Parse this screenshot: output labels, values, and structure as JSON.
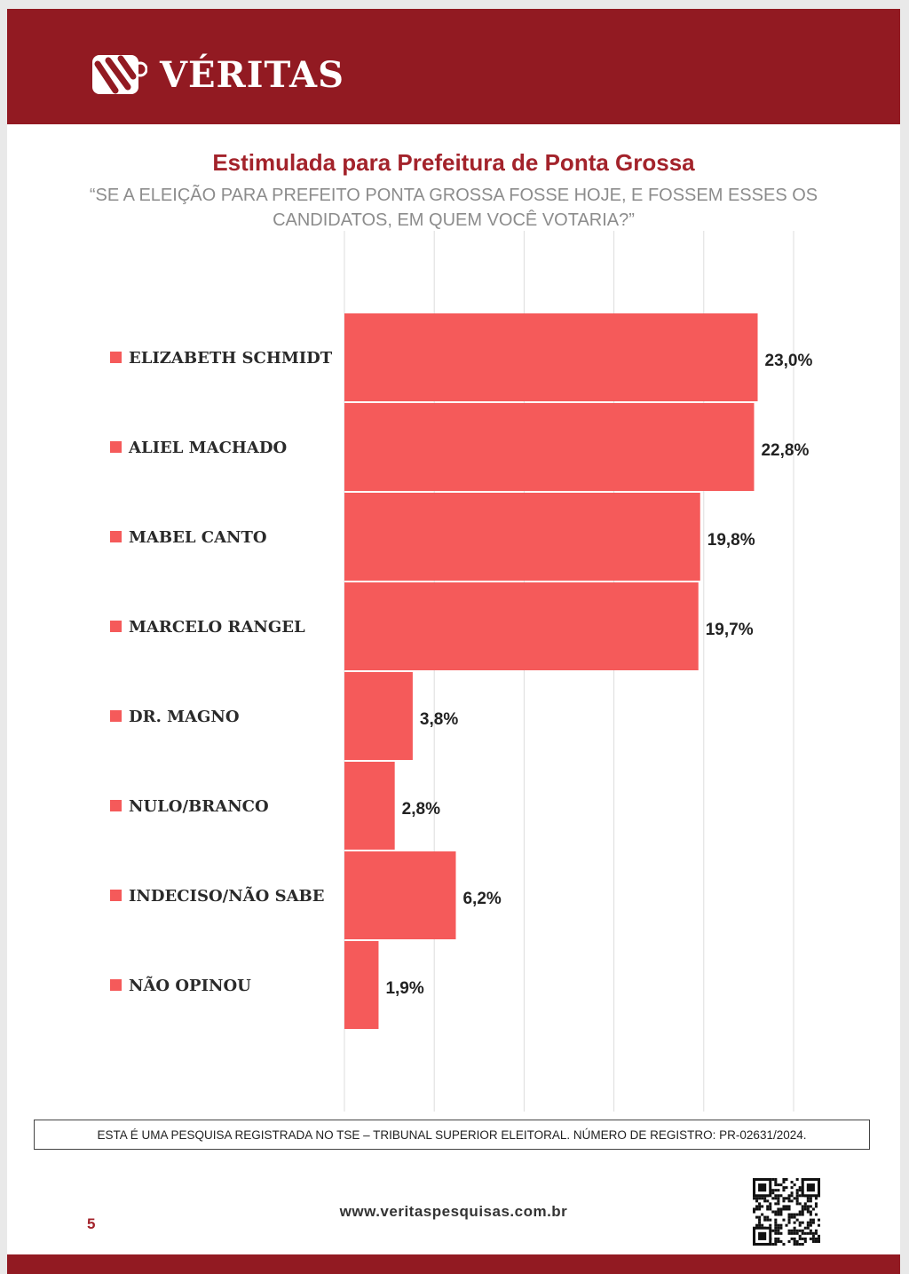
{
  "brand": {
    "name": "VÉRITAS",
    "color": "#921a22"
  },
  "page": {
    "number": "5",
    "url": "www.veritaspesquisas.com.br",
    "registration_note": "ESTA É UMA PESQUISA REGISTRADA NO TSE – TRIBUNAL SUPERIOR ELEITORAL. NÚMERO DE REGISTRO: PR-02631/2024."
  },
  "chart_data": {
    "type": "bar",
    "orientation": "horizontal",
    "title": "Estimulada para Prefeitura de Ponta Grossa",
    "subtitle": "“SE A ELEIÇÃO PARA PREFEITO PONTA GROSSA FOSSE HOJE, E FOSSEM ESSES OS CANDIDATOS, EM QUEM VOCÊ VOTARIA?”",
    "categories": [
      "ELIZABETH SCHMIDT",
      "ALIEL MACHADO",
      "MABEL CANTO",
      "MARCELO RANGEL",
      "DR. MAGNO",
      "NULO/BRANCO",
      "INDECISO/NÃO SABE",
      "NÃO OPINOU"
    ],
    "values": [
      23.0,
      22.8,
      19.8,
      19.7,
      3.8,
      2.8,
      6.2,
      1.9
    ],
    "data_labels": [
      "23,0%",
      "22,8%",
      "19,8%",
      "19,7%",
      "3,8%",
      "2,8%",
      "6,2%",
      "1,9%"
    ],
    "xlim": [
      0,
      25
    ],
    "grid": true,
    "bar_color": "#f55a5a"
  }
}
